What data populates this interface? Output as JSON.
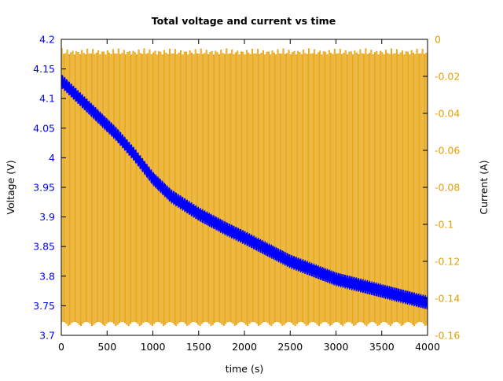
{
  "chart_data": {
    "type": "line",
    "title": "Total voltage and current vs time",
    "xlabel": "time (s)",
    "ylabel_left": "Voltage (V)",
    "ylabel_right": "Current (A)",
    "xlim": [
      0,
      4000
    ],
    "ylim_left": [
      3.7,
      4.2
    ],
    "ylim_right": [
      -0.16,
      0
    ],
    "x_ticks": [
      "0",
      "500",
      "1000",
      "1500",
      "2000",
      "2500",
      "3000",
      "3500",
      "4000"
    ],
    "y_left_ticks": [
      "3.7",
      "3.75",
      "3.8",
      "3.85",
      "3.9",
      "3.95",
      "4",
      "4.05",
      "4.1",
      "4.15",
      "4.2"
    ],
    "y_right_ticks": [
      "-0.16",
      "-0.14",
      "-0.12",
      "-0.1",
      "-0.08",
      "-0.06",
      "-0.04",
      "-0.02",
      "0"
    ],
    "grid": false,
    "colors": {
      "voltage": "#0000ff",
      "current": "#e69f00",
      "left_axis": "#0000ff",
      "right_axis": "#e69f00"
    },
    "series": [
      {
        "axis": "left",
        "color": "#0000ff",
        "x": [
          0,
          200,
          400,
          600,
          800,
          1000,
          1200,
          1500,
          1800,
          2000,
          2500,
          3000,
          3500,
          4000
        ],
        "y": [
          4.13,
          4.1,
          4.07,
          4.04,
          4.005,
          3.965,
          3.935,
          3.905,
          3.88,
          3.865,
          3.825,
          3.795,
          3.775,
          3.755
        ],
        "noise_band": 0.012
      },
      {
        "axis": "right",
        "color": "#e69f00",
        "oscillating": true,
        "x_range": [
          0,
          4000
        ],
        "cycle_period": 20,
        "y_min": -0.155,
        "y_max": -0.005
      }
    ]
  }
}
